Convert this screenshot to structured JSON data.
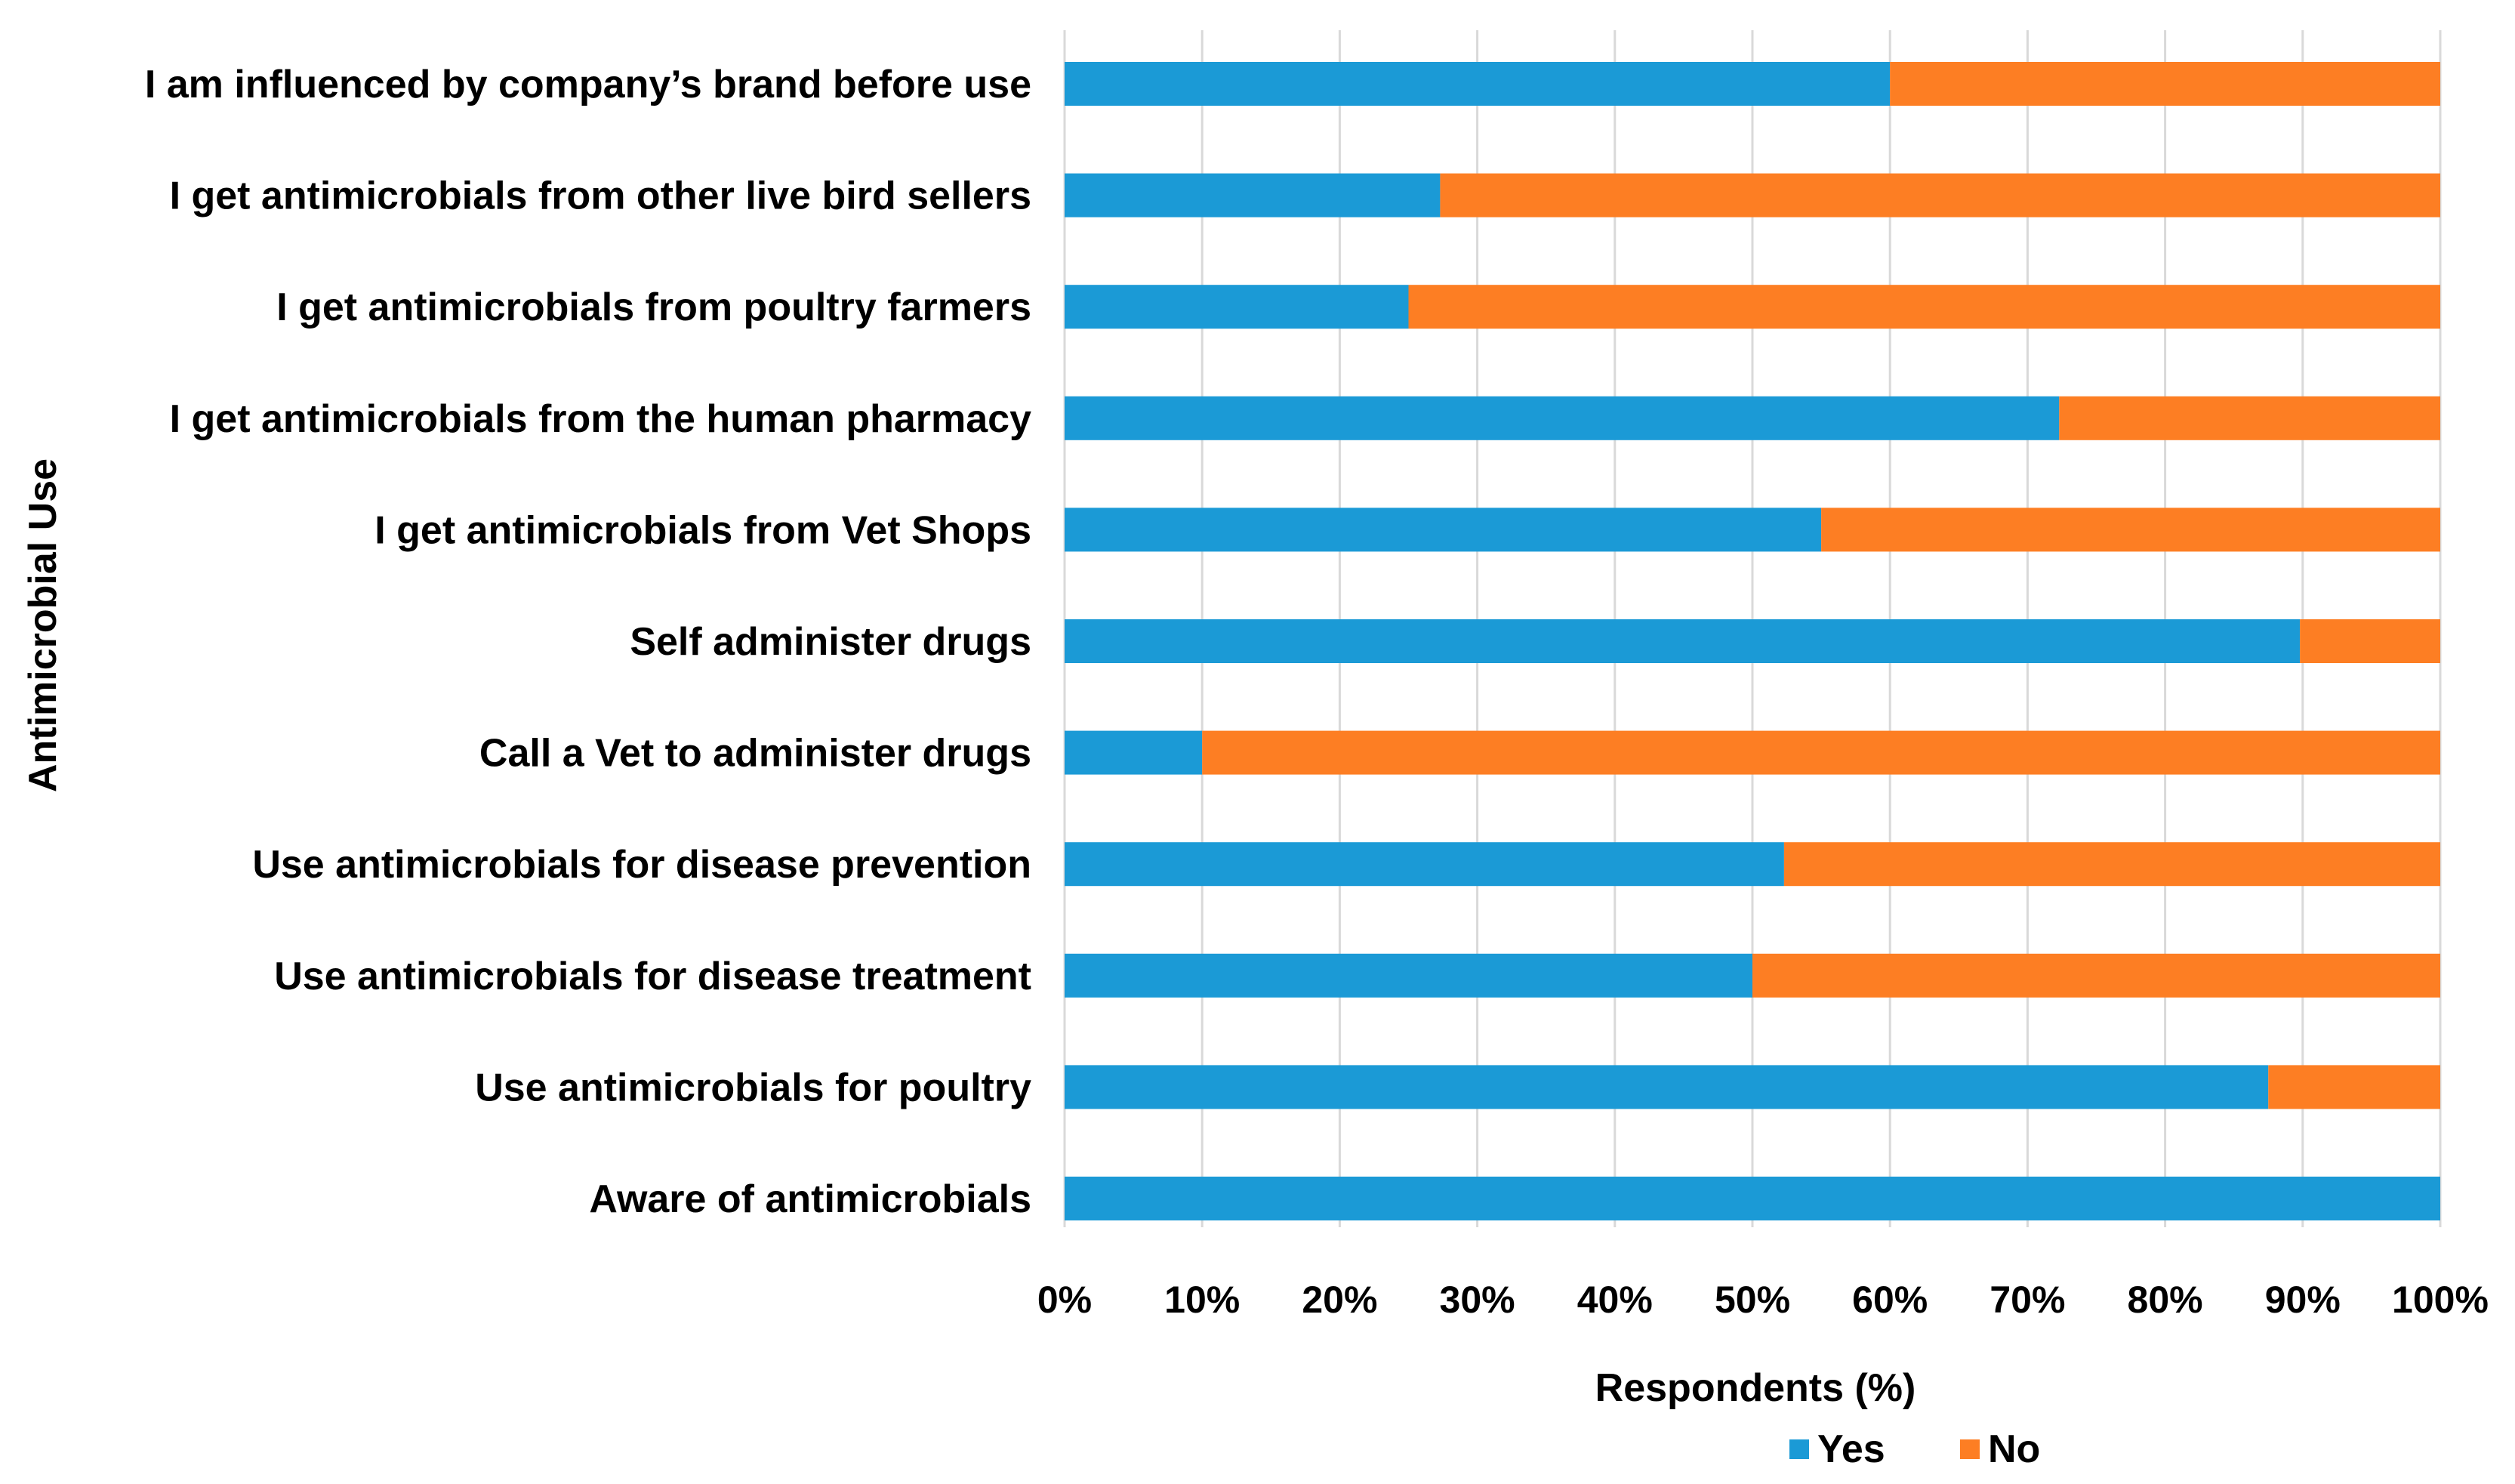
{
  "chart_data": {
    "type": "bar",
    "orientation": "horizontal",
    "stacked": true,
    "percent": true,
    "categories": [
      "I am influenced by company’s brand before use",
      "I get antimicrobials from other live bird sellers",
      "I get antimicrobials from poultry farmers",
      "I get antimicrobials from the human pharmacy",
      "I get antimicrobials from Vet Shops",
      "Self administer drugs",
      "Call a Vet to administer drugs",
      "Use antimicrobials for disease prevention",
      "Use antimicrobials for disease treatment",
      "Use antimicrobials for poultry",
      "Aware of antimicrobials"
    ],
    "series": [
      {
        "name": "Yes",
        "color": "#1b9ad6",
        "values": [
          60,
          27.3,
          25,
          72.3,
          55,
          89.8,
          10,
          52.3,
          50,
          87.5,
          100
        ]
      },
      {
        "name": "No",
        "color": "#fd7e23",
        "values": [
          40,
          72.7,
          75,
          27.7,
          45,
          10.2,
          90,
          47.7,
          50,
          12.5,
          0
        ]
      }
    ],
    "xticks": [
      "0%",
      "10%",
      "20%",
      "30%",
      "40%",
      "50%",
      "60%",
      "70%",
      "80%",
      "90%",
      "100%"
    ],
    "xlim": [
      0,
      100
    ],
    "xlabel": "Respondents (%)",
    "ylabel": "Antimicrobial Use",
    "grid": "vertical",
    "legend": "bottom"
  }
}
